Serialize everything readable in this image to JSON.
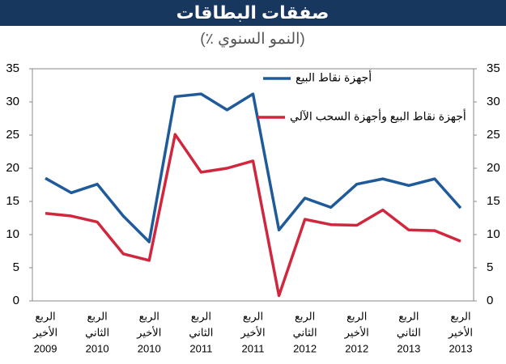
{
  "chart_data": {
    "type": "line",
    "title": "صفقات البطاقات",
    "subtitle": "(٪ النمو السنوي)",
    "categories": [
      [
        "الربع",
        "الأخير",
        "2009"
      ],
      null,
      [
        "الربع",
        "الثاني",
        "2010"
      ],
      null,
      [
        "الربع",
        "الأخير",
        "2010"
      ],
      null,
      [
        "الربع",
        "الثاني",
        "2011"
      ],
      null,
      [
        "الربع",
        "الأخير",
        "2011"
      ],
      null,
      [
        "الربع",
        "الثاني",
        "2012"
      ],
      null,
      [
        "الربع",
        "الأخير",
        "2012"
      ],
      null,
      [
        "الربع",
        "الثاني",
        "2013"
      ],
      null,
      [
        "الربع",
        "الأخير",
        "2013"
      ]
    ],
    "series": [
      {
        "name": "أجهزة نقاط البيع",
        "color": "#1f5b9a",
        "values": [
          18.5,
          16.3,
          17.6,
          12.8,
          8.9,
          30.8,
          31.2,
          28.8,
          31.2,
          10.7,
          15.5,
          14.1,
          17.6,
          18.4,
          17.4,
          18.4,
          14.0
        ]
      },
      {
        "name": "أجهزة نقاط البيع وأجهزة السحب الآلي",
        "color": "#d0273e",
        "values": [
          13.2,
          12.8,
          11.9,
          7.1,
          6.1,
          25.1,
          19.4,
          20.0,
          21.1,
          0.8,
          12.3,
          11.5,
          11.4,
          13.7,
          10.7,
          10.6,
          9.0
        ]
      }
    ],
    "ylim": [
      0,
      35
    ],
    "yticks": [
      0,
      5,
      10,
      15,
      20,
      25,
      30,
      35
    ],
    "y2lim": [
      0,
      35
    ],
    "y2ticks": [
      0,
      5,
      10,
      15,
      20,
      25,
      30,
      35
    ],
    "grid": false
  }
}
